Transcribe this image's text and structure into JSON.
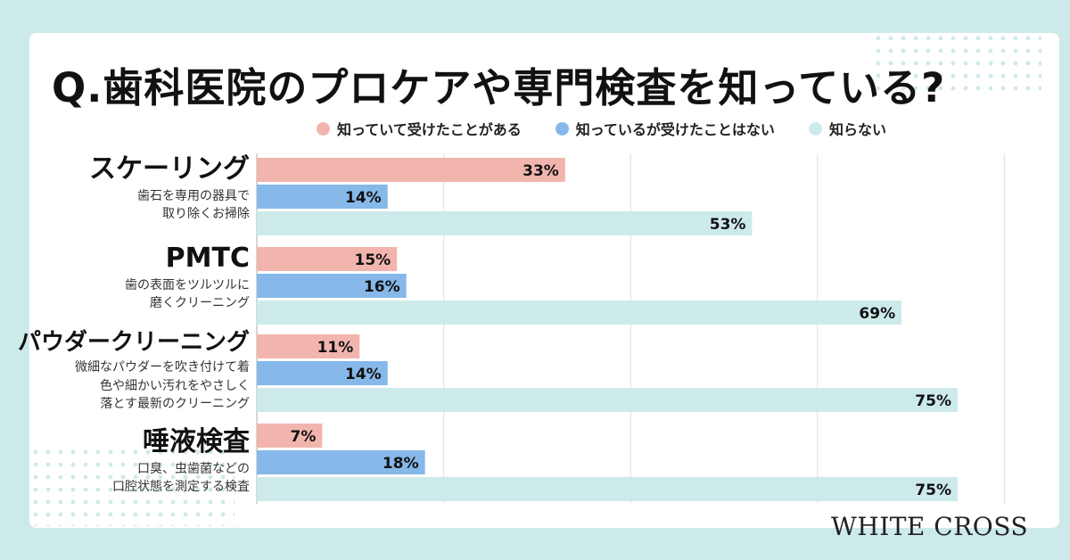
{
  "title": "Q.歯科医院のプロケアや専門検査を知っている?",
  "legend": [
    {
      "label": "知っていて受けたことがある",
      "color": "#f2b5ae"
    },
    {
      "label": "知っているが受けたことはない",
      "color": "#86b8e9"
    },
    {
      "label": "知らない",
      "color": "#cdeaeb"
    }
  ],
  "categories": [
    {
      "name": "スケーリング",
      "desc": "歯石を専用の器具で\n取り除くお掃除"
    },
    {
      "name": "PMTC",
      "desc": "歯の表面をツルツルに\n磨くクリーニング"
    },
    {
      "name": "パウダークリーニング",
      "desc": "微細なパウダーを吹き付けて着\n色や細かい汚れをやさしく\n落とす最新のクリーニング"
    },
    {
      "name": "唾液検査",
      "desc": "口臭、虫歯菌などの\n口腔状態を測定する検査"
    }
  ],
  "chart_data": {
    "type": "bar",
    "orientation": "horizontal",
    "categories": [
      "スケーリング",
      "PMTC",
      "パウダークリーニング",
      "唾液検査"
    ],
    "series": [
      {
        "name": "知っていて受けたことがある",
        "values": [
          33,
          15,
          11,
          7
        ],
        "color": "#f2b5ae"
      },
      {
        "name": "知っているが受けたことはない",
        "values": [
          14,
          16,
          14,
          18
        ],
        "color": "#86b8e9"
      },
      {
        "name": "知らない",
        "values": [
          53,
          69,
          75,
          75
        ],
        "color": "#cdeaeb"
      }
    ],
    "value_suffix": "%",
    "xlim": [
      0,
      80
    ],
    "grid": true,
    "legend_position": "top"
  },
  "brand": "WHITE CROSS"
}
